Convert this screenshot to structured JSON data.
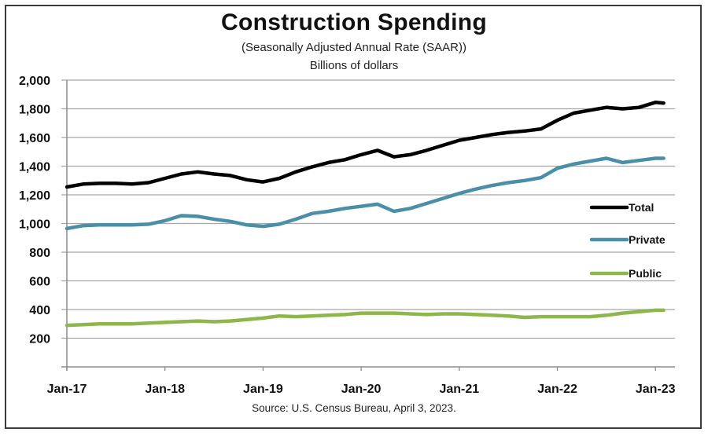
{
  "chart_data": {
    "type": "line",
    "title": "Construction  Spending",
    "subtitle": "(Seasonally Adjusted Annual Rate (SAAR))",
    "ylabel": "Billions of dollars",
    "xlabel": "",
    "source": "Source: U.S. Census Bureau, April 3, 2023.",
    "ylim": [
      0,
      2000
    ],
    "yticks": [
      200,
      400,
      600,
      800,
      1000,
      1200,
      1400,
      1600,
      1800,
      2000
    ],
    "ytick_labels": [
      "200",
      "400",
      "600",
      "800",
      "1,000",
      "1,200",
      "1,400",
      "1,600",
      "1,800",
      "2,000"
    ],
    "xticks": [
      "Jan-17",
      "Jan-18",
      "Jan-19",
      "Jan-20",
      "Jan-21",
      "Jan-22",
      "Jan-23"
    ],
    "grid": true,
    "legend_position": "right",
    "x": [
      "2017-01",
      "2017-03",
      "2017-05",
      "2017-07",
      "2017-09",
      "2017-11",
      "2018-01",
      "2018-03",
      "2018-05",
      "2018-07",
      "2018-09",
      "2018-11",
      "2019-01",
      "2019-03",
      "2019-05",
      "2019-07",
      "2019-09",
      "2019-11",
      "2020-01",
      "2020-03",
      "2020-05",
      "2020-07",
      "2020-09",
      "2020-11",
      "2021-01",
      "2021-03",
      "2021-05",
      "2021-07",
      "2021-09",
      "2021-11",
      "2022-01",
      "2022-03",
      "2022-05",
      "2022-07",
      "2022-09",
      "2022-11",
      "2023-01",
      "2023-02"
    ],
    "series": [
      {
        "name": "Total",
        "color": "#000000",
        "values": [
          1255,
          1275,
          1280,
          1280,
          1275,
          1285,
          1315,
          1345,
          1360,
          1345,
          1335,
          1305,
          1290,
          1315,
          1360,
          1395,
          1425,
          1445,
          1480,
          1510,
          1465,
          1480,
          1510,
          1545,
          1580,
          1600,
          1620,
          1635,
          1645,
          1660,
          1720,
          1770,
          1790,
          1810,
          1800,
          1810,
          1845,
          1840
        ]
      },
      {
        "name": "Private",
        "color": "#4a8fa8",
        "values": [
          965,
          985,
          990,
          990,
          990,
          995,
          1020,
          1055,
          1050,
          1030,
          1015,
          990,
          980,
          995,
          1030,
          1070,
          1085,
          1105,
          1120,
          1135,
          1085,
          1105,
          1140,
          1175,
          1210,
          1240,
          1265,
          1285,
          1300,
          1320,
          1385,
          1415,
          1435,
          1455,
          1425,
          1440,
          1455,
          1455
        ]
      },
      {
        "name": "Public",
        "color": "#8db74a",
        "values": [
          290,
          295,
          300,
          300,
          300,
          305,
          310,
          315,
          320,
          315,
          320,
          330,
          340,
          355,
          350,
          355,
          360,
          365,
          375,
          375,
          375,
          370,
          365,
          370,
          370,
          365,
          360,
          355,
          345,
          350,
          350,
          350,
          350,
          360,
          375,
          385,
          395,
          395
        ]
      }
    ]
  }
}
